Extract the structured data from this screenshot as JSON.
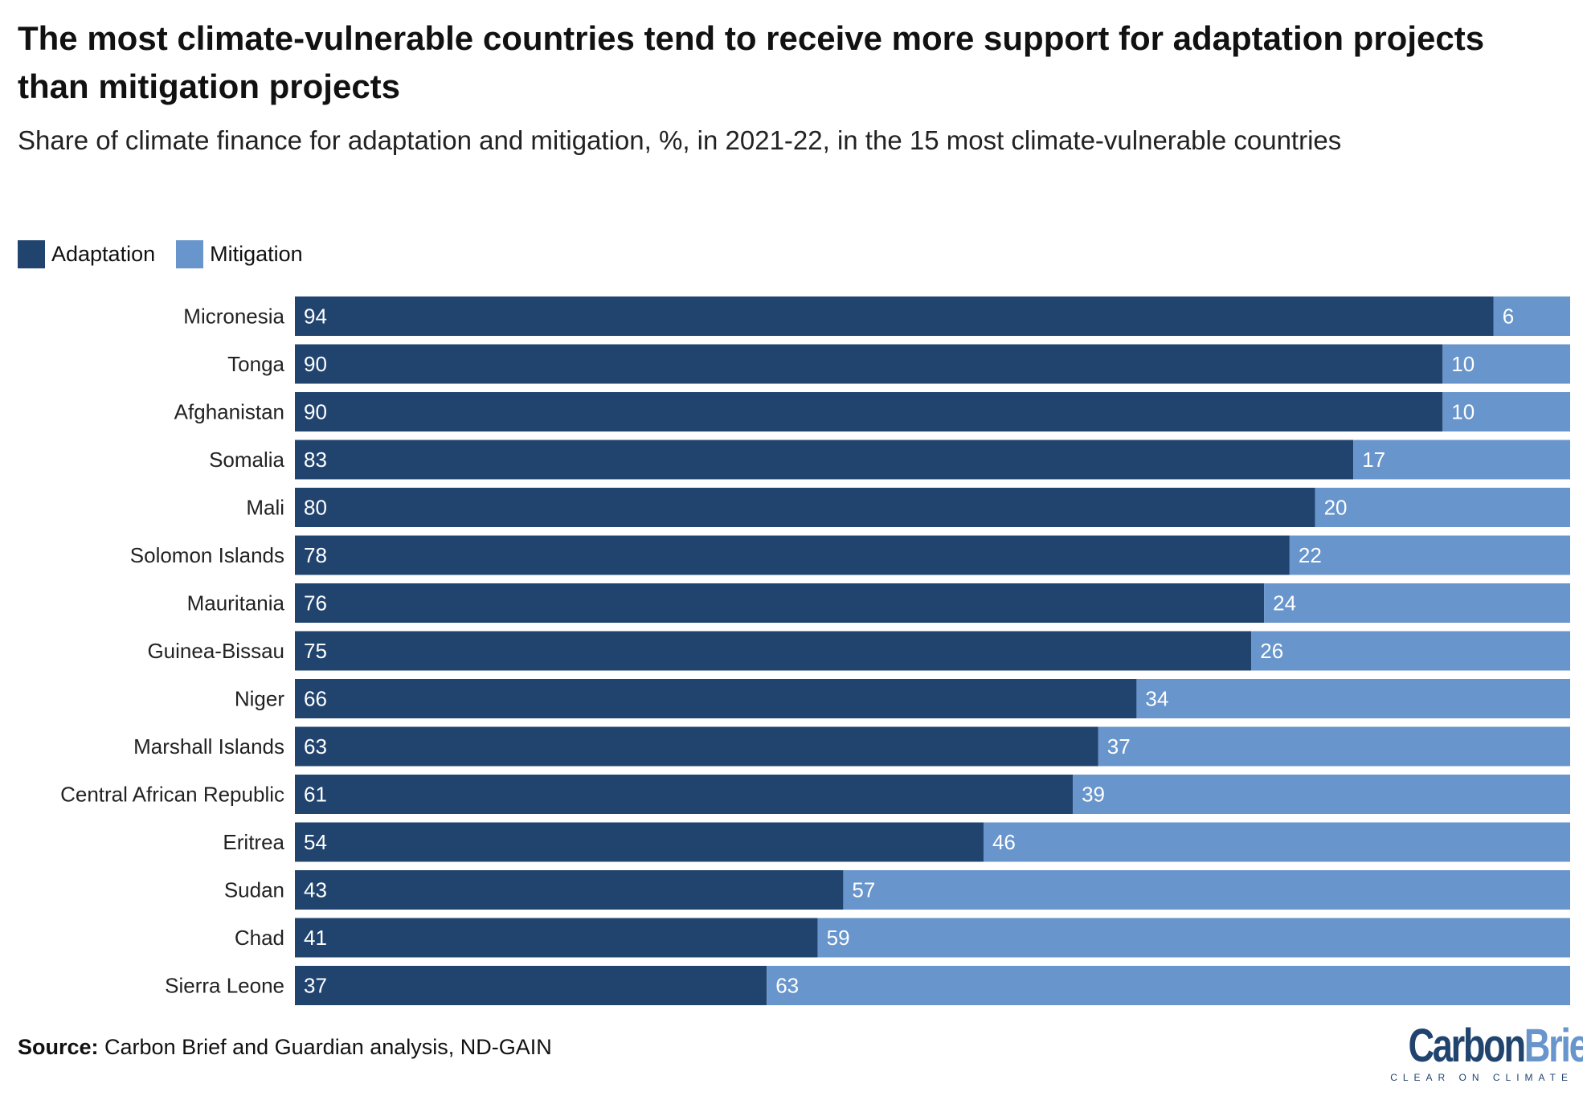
{
  "title": "The most climate-vulnerable countries tend to receive more support for adaptation projects than mitigation projects",
  "subtitle": "Share of climate finance for adaptation and mitigation, %, in 2021-22, in the 15 most climate-vulnerable countries",
  "source_label": "Source:",
  "source_text": " Carbon Brief and Guardian analysis, ND-GAIN",
  "logo": {
    "part1": "Carbon",
    "part2": "Brief",
    "tagline": "CLEAR ON CLIMATE"
  },
  "colors": {
    "adaptation": "#21446f",
    "mitigation": "#6895cb"
  },
  "chart_data": {
    "type": "bar",
    "orientation": "horizontal",
    "stacked": true,
    "xlim": [
      0,
      100
    ],
    "grid": false,
    "legend_position": "top-left",
    "categories": [
      "Micronesia",
      "Tonga",
      "Afghanistan",
      "Somalia",
      "Mali",
      "Solomon Islands",
      "Mauritania",
      "Guinea-Bissau",
      "Niger",
      "Marshall Islands",
      "Central African Republic",
      "Eritrea",
      "Sudan",
      "Chad",
      "Sierra Leone"
    ],
    "series": [
      {
        "name": "Adaptation",
        "values": [
          94,
          90,
          90,
          83,
          80,
          78,
          76,
          75,
          66,
          63,
          61,
          54,
          43,
          41,
          37
        ]
      },
      {
        "name": "Mitigation",
        "values": [
          6,
          10,
          10,
          17,
          20,
          22,
          24,
          26,
          34,
          37,
          39,
          46,
          57,
          59,
          63
        ]
      }
    ]
  }
}
